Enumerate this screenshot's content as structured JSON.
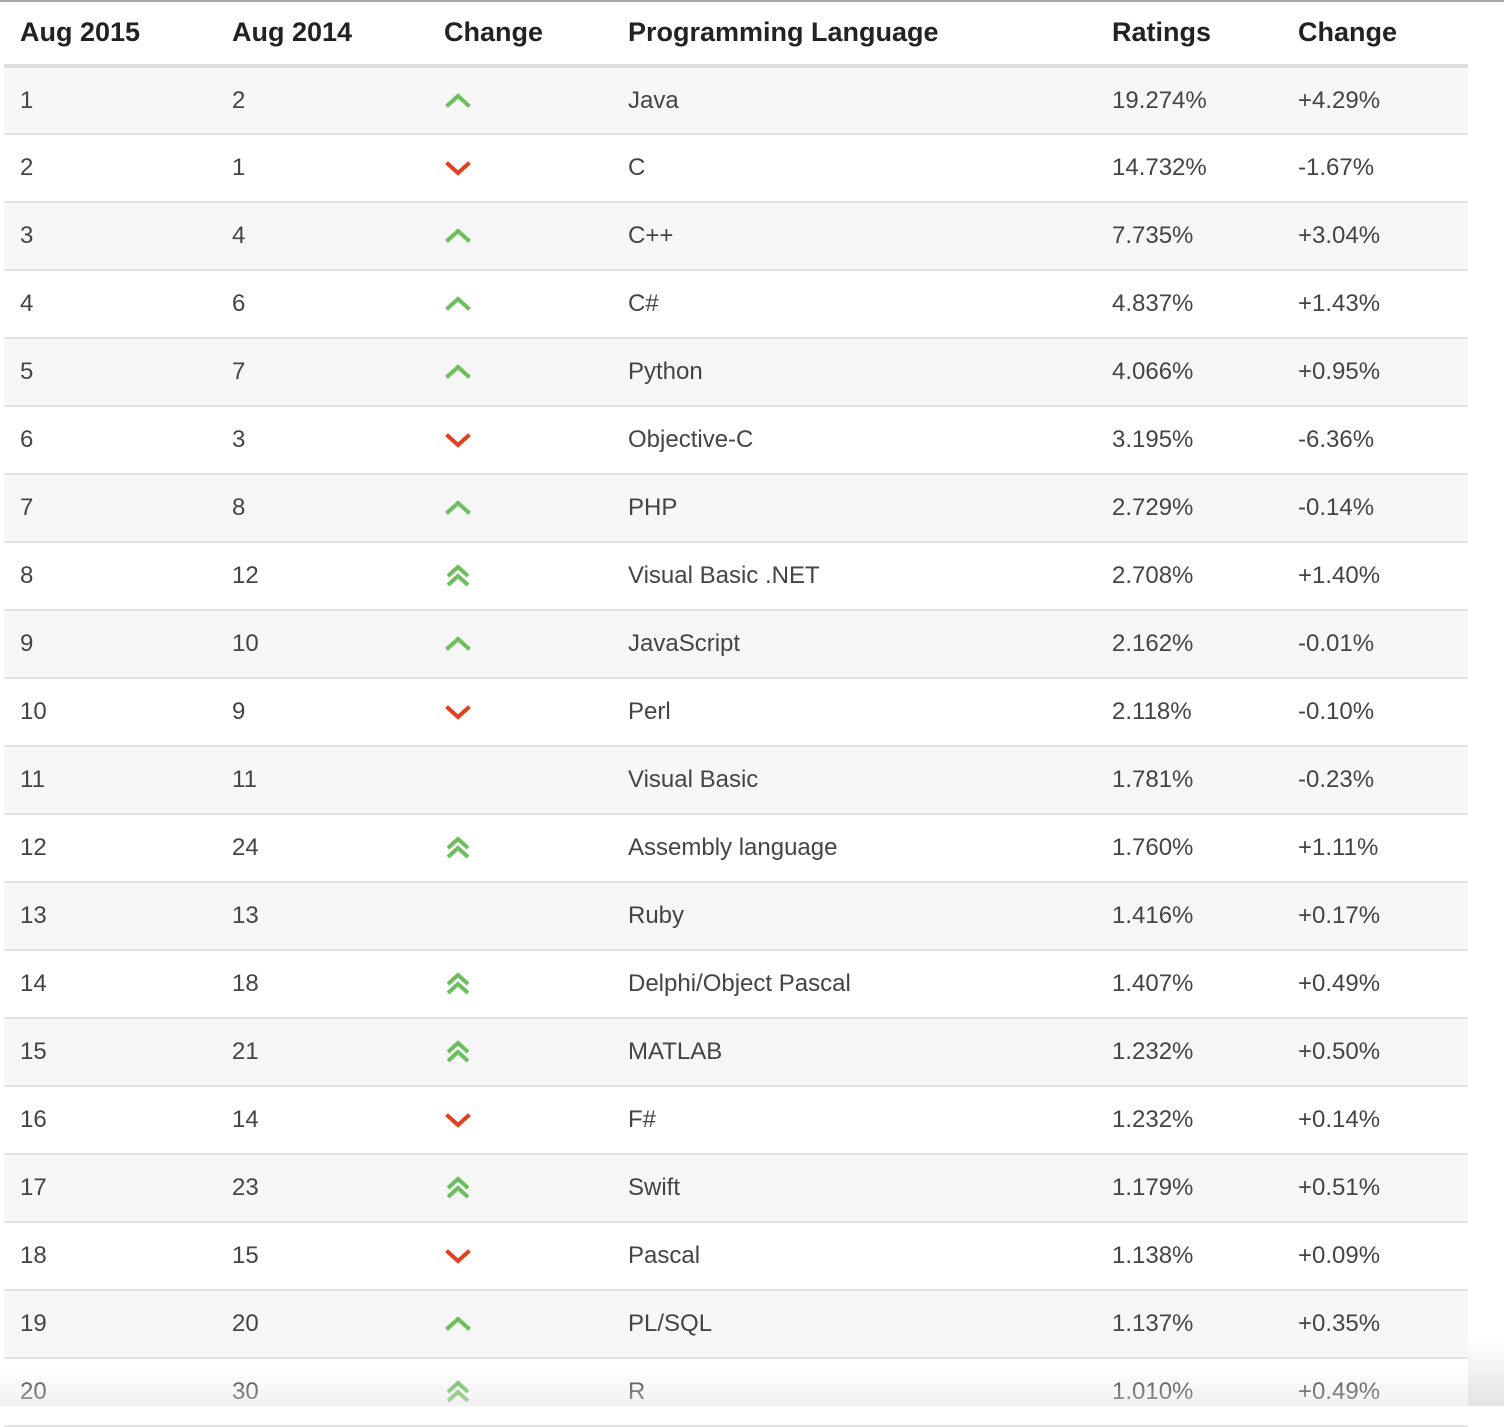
{
  "table": {
    "headers": [
      "Aug 2015",
      "Aug 2014",
      "Change",
      "Programming Language",
      "Ratings",
      "Change"
    ],
    "arrow_colors": {
      "up": "#6cbf5c",
      "double_up": "#6cbf5c",
      "down": "#e0421f"
    },
    "rows": [
      {
        "rank_2015": "1",
        "rank_2014": "2",
        "trend": "up",
        "language": "Java",
        "rating": "19.274%",
        "change": "+4.29%"
      },
      {
        "rank_2015": "2",
        "rank_2014": "1",
        "trend": "down",
        "language": "C",
        "rating": "14.732%",
        "change": "-1.67%"
      },
      {
        "rank_2015": "3",
        "rank_2014": "4",
        "trend": "up",
        "language": "C++",
        "rating": "7.735%",
        "change": "+3.04%"
      },
      {
        "rank_2015": "4",
        "rank_2014": "6",
        "trend": "up",
        "language": "C#",
        "rating": "4.837%",
        "change": "+1.43%"
      },
      {
        "rank_2015": "5",
        "rank_2014": "7",
        "trend": "up",
        "language": "Python",
        "rating": "4.066%",
        "change": "+0.95%"
      },
      {
        "rank_2015": "6",
        "rank_2014": "3",
        "trend": "down",
        "language": "Objective-C",
        "rating": "3.195%",
        "change": "-6.36%"
      },
      {
        "rank_2015": "7",
        "rank_2014": "8",
        "trend": "up",
        "language": "PHP",
        "rating": "2.729%",
        "change": "-0.14%"
      },
      {
        "rank_2015": "8",
        "rank_2014": "12",
        "trend": "double_up",
        "language": "Visual Basic .NET",
        "rating": "2.708%",
        "change": "+1.40%"
      },
      {
        "rank_2015": "9",
        "rank_2014": "10",
        "trend": "up",
        "language": "JavaScript",
        "rating": "2.162%",
        "change": "-0.01%"
      },
      {
        "rank_2015": "10",
        "rank_2014": "9",
        "trend": "down",
        "language": "Perl",
        "rating": "2.118%",
        "change": "-0.10%"
      },
      {
        "rank_2015": "11",
        "rank_2014": "11",
        "trend": "none",
        "language": "Visual Basic",
        "rating": "1.781%",
        "change": "-0.23%"
      },
      {
        "rank_2015": "12",
        "rank_2014": "24",
        "trend": "double_up",
        "language": "Assembly language",
        "rating": "1.760%",
        "change": "+1.11%"
      },
      {
        "rank_2015": "13",
        "rank_2014": "13",
        "trend": "none",
        "language": "Ruby",
        "rating": "1.416%",
        "change": "+0.17%"
      },
      {
        "rank_2015": "14",
        "rank_2014": "18",
        "trend": "double_up",
        "language": "Delphi/Object Pascal",
        "rating": "1.407%",
        "change": "+0.49%"
      },
      {
        "rank_2015": "15",
        "rank_2014": "21",
        "trend": "double_up",
        "language": "MATLAB",
        "rating": "1.232%",
        "change": "+0.50%"
      },
      {
        "rank_2015": "16",
        "rank_2014": "14",
        "trend": "down",
        "language": "F#",
        "rating": "1.232%",
        "change": "+0.14%"
      },
      {
        "rank_2015": "17",
        "rank_2014": "23",
        "trend": "double_up",
        "language": "Swift",
        "rating": "1.179%",
        "change": "+0.51%"
      },
      {
        "rank_2015": "18",
        "rank_2014": "15",
        "trend": "down",
        "language": "Pascal",
        "rating": "1.138%",
        "change": "+0.09%"
      },
      {
        "rank_2015": "19",
        "rank_2014": "20",
        "trend": "up",
        "language": "PL/SQL",
        "rating": "1.137%",
        "change": "+0.35%"
      },
      {
        "rank_2015": "20",
        "rank_2014": "30",
        "trend": "double_up",
        "language": "R",
        "rating": "1.010%",
        "change": "+0.49%"
      }
    ]
  }
}
